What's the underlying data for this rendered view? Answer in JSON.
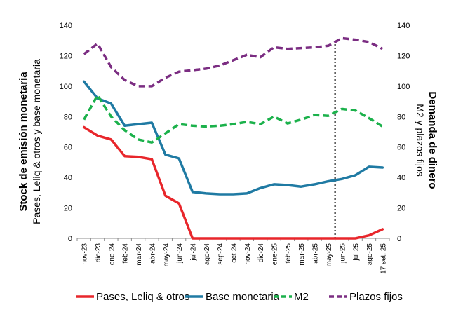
{
  "chart_data": {
    "type": "line",
    "title": "",
    "ylabel_left": [
      "Stock de emisión monetaria",
      "Pases, Leliq & otros y base monetaria"
    ],
    "ylabel_right": [
      "Demanda de dinero",
      "M2 y plazos fijos"
    ],
    "ylim_left": [
      0,
      140
    ],
    "ylim_right": [
      0,
      140
    ],
    "yticks": [
      0,
      20,
      40,
      60,
      80,
      100,
      120,
      140
    ],
    "grid": false,
    "legend_position": "bottom",
    "categories": [
      "nov-23",
      "dic-23",
      "ene-24",
      "feb-24",
      "mar-24",
      "abr-24",
      "may-24",
      "jun-24",
      "jul-24",
      "ago-24",
      "sep-24",
      "oct-24",
      "nov-24",
      "dic-24",
      "ene-25",
      "feb-25",
      "mar-25",
      "abr-25",
      "may-25",
      "jun-25",
      "jul-25",
      "ago-25",
      "17 set. 25"
    ],
    "vertical_marker": {
      "position": "between may-25 and jun-25",
      "style": "dotted",
      "color": "#000000"
    },
    "series": [
      {
        "name": "Pases, Leliq & otros",
        "color": "#e8262b",
        "dash": "solid",
        "axis": "left",
        "values": [
          73,
          67.5,
          65,
          54,
          53.5,
          52,
          28,
          23,
          0,
          0,
          0,
          0,
          0,
          0,
          0,
          0,
          0,
          0,
          0,
          0,
          0,
          2,
          6
        ]
      },
      {
        "name": "Base monetaria",
        "color": "#1f7aa3",
        "dash": "solid",
        "axis": "left",
        "values": [
          103,
          92,
          88.5,
          74,
          75,
          76,
          55,
          52.5,
          30.5,
          29.5,
          29,
          29,
          29.5,
          33,
          35.5,
          35,
          34,
          35.5,
          37.5,
          39,
          41.5,
          47,
          46.5
        ]
      },
      {
        "name": "M2",
        "color": "#1bb14b",
        "dash": "dashed",
        "axis": "right",
        "values": [
          78,
          94,
          80,
          71,
          65,
          63,
          69,
          75,
          74,
          73.5,
          74,
          75,
          76.5,
          75,
          80,
          75.5,
          78,
          81,
          80.5,
          85,
          84,
          79,
          73.5
        ]
      },
      {
        "name": "Plazos fijos",
        "color": "#7b2d82",
        "dash": "dashed",
        "axis": "right",
        "values": [
          121,
          128,
          112.5,
          104,
          100,
          100,
          105.5,
          109.5,
          110.5,
          111.5,
          113.5,
          117,
          120.5,
          119,
          125.5,
          124.5,
          125,
          125.5,
          126.5,
          131.5,
          130.5,
          129,
          124.5
        ]
      }
    ]
  }
}
